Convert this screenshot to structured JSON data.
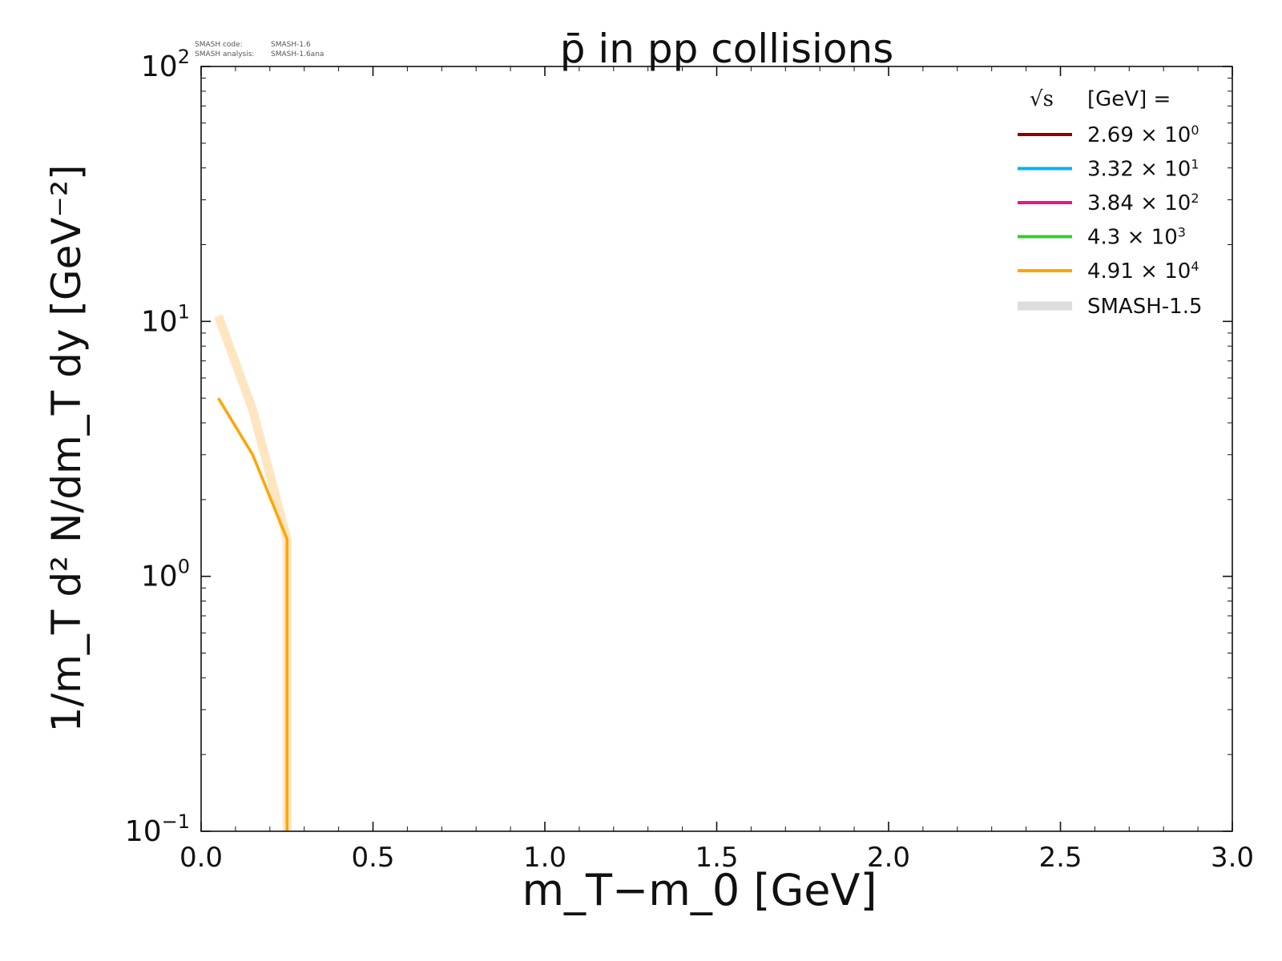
{
  "annotations": {
    "code_label": "SMASH code:",
    "code_version": "SMASH-1.6",
    "analysis_label": "SMASH analysis:",
    "analysis_version": "SMASH-1.6ana"
  },
  "chart_data": {
    "type": "line",
    "title": "p̄ in pp collisions",
    "xlabel": "m_T−m_0 [GeV]",
    "ylabel": "1/m_T d² N/dm_T dy [GeV⁻²]",
    "xlim": [
      0.0,
      3.0
    ],
    "ylim": [
      0.1,
      100
    ],
    "yscale": "log",
    "xticks": [
      "0.0",
      "0.5",
      "1.0",
      "1.5",
      "2.0",
      "2.5",
      "3.0"
    ],
    "yticks": [
      {
        "base": "10",
        "exp": "−1"
      },
      {
        "base": "10",
        "exp": "0"
      },
      {
        "base": "10",
        "exp": "1"
      },
      {
        "base": "10",
        "exp": "2"
      }
    ],
    "legend": {
      "position": "top-right",
      "title": "[GeV] =",
      "title_symbol": "√s",
      "entries": [
        {
          "mantissa": "2.69",
          "times": "×",
          "base": "10",
          "exp": "0",
          "color": "#8b0000"
        },
        {
          "mantissa": "3.32",
          "times": "×",
          "base": "10",
          "exp": "1",
          "color": "#00b2ee"
        },
        {
          "mantissa": "3.84",
          "times": "×",
          "base": "10",
          "exp": "2",
          "color": "#ee1289"
        },
        {
          "mantissa": "4.3",
          "times": "×",
          "base": "10",
          "exp": "3",
          "color": "#32cd32"
        },
        {
          "mantissa": "4.91",
          "times": "×",
          "base": "10",
          "exp": "4",
          "color": "#ffa500"
        }
      ],
      "reference_label": "SMASH-1.5",
      "reference_color": "#dddddd"
    },
    "series": [
      {
        "name": "SMASH-1.6 √s = 4.91 × 10^4 GeV",
        "color": "#ffa500",
        "x": [
          0.05,
          0.15,
          0.25,
          0.25
        ],
        "y": [
          5.0,
          3.0,
          1.4,
          0.1
        ]
      },
      {
        "name": "SMASH-1.5 √s = 4.91 × 10^4 GeV",
        "color": "#ffe5c0",
        "x": [
          0.05,
          0.15,
          0.25,
          0.25
        ],
        "y": [
          10.5,
          4.5,
          1.4,
          0.1
        ]
      }
    ]
  }
}
